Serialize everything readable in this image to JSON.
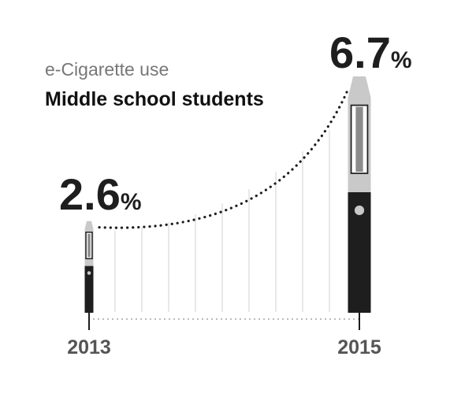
{
  "chart_data": {
    "type": "bar",
    "subtitle": "e-Cigarette use",
    "title": "Middle school students",
    "categories": [
      "2013",
      "2015"
    ],
    "values": [
      2.6,
      6.7
    ],
    "value_labels": [
      {
        "number": "2.6",
        "unit": "%"
      },
      {
        "number": "6.7",
        "unit": "%"
      }
    ],
    "grid": true
  },
  "colors": {
    "ink": "#1e1e1e",
    "body_light": "#c9c9c9",
    "tank_mid": "#8c8c8c",
    "grid": "#d8d8d8"
  }
}
